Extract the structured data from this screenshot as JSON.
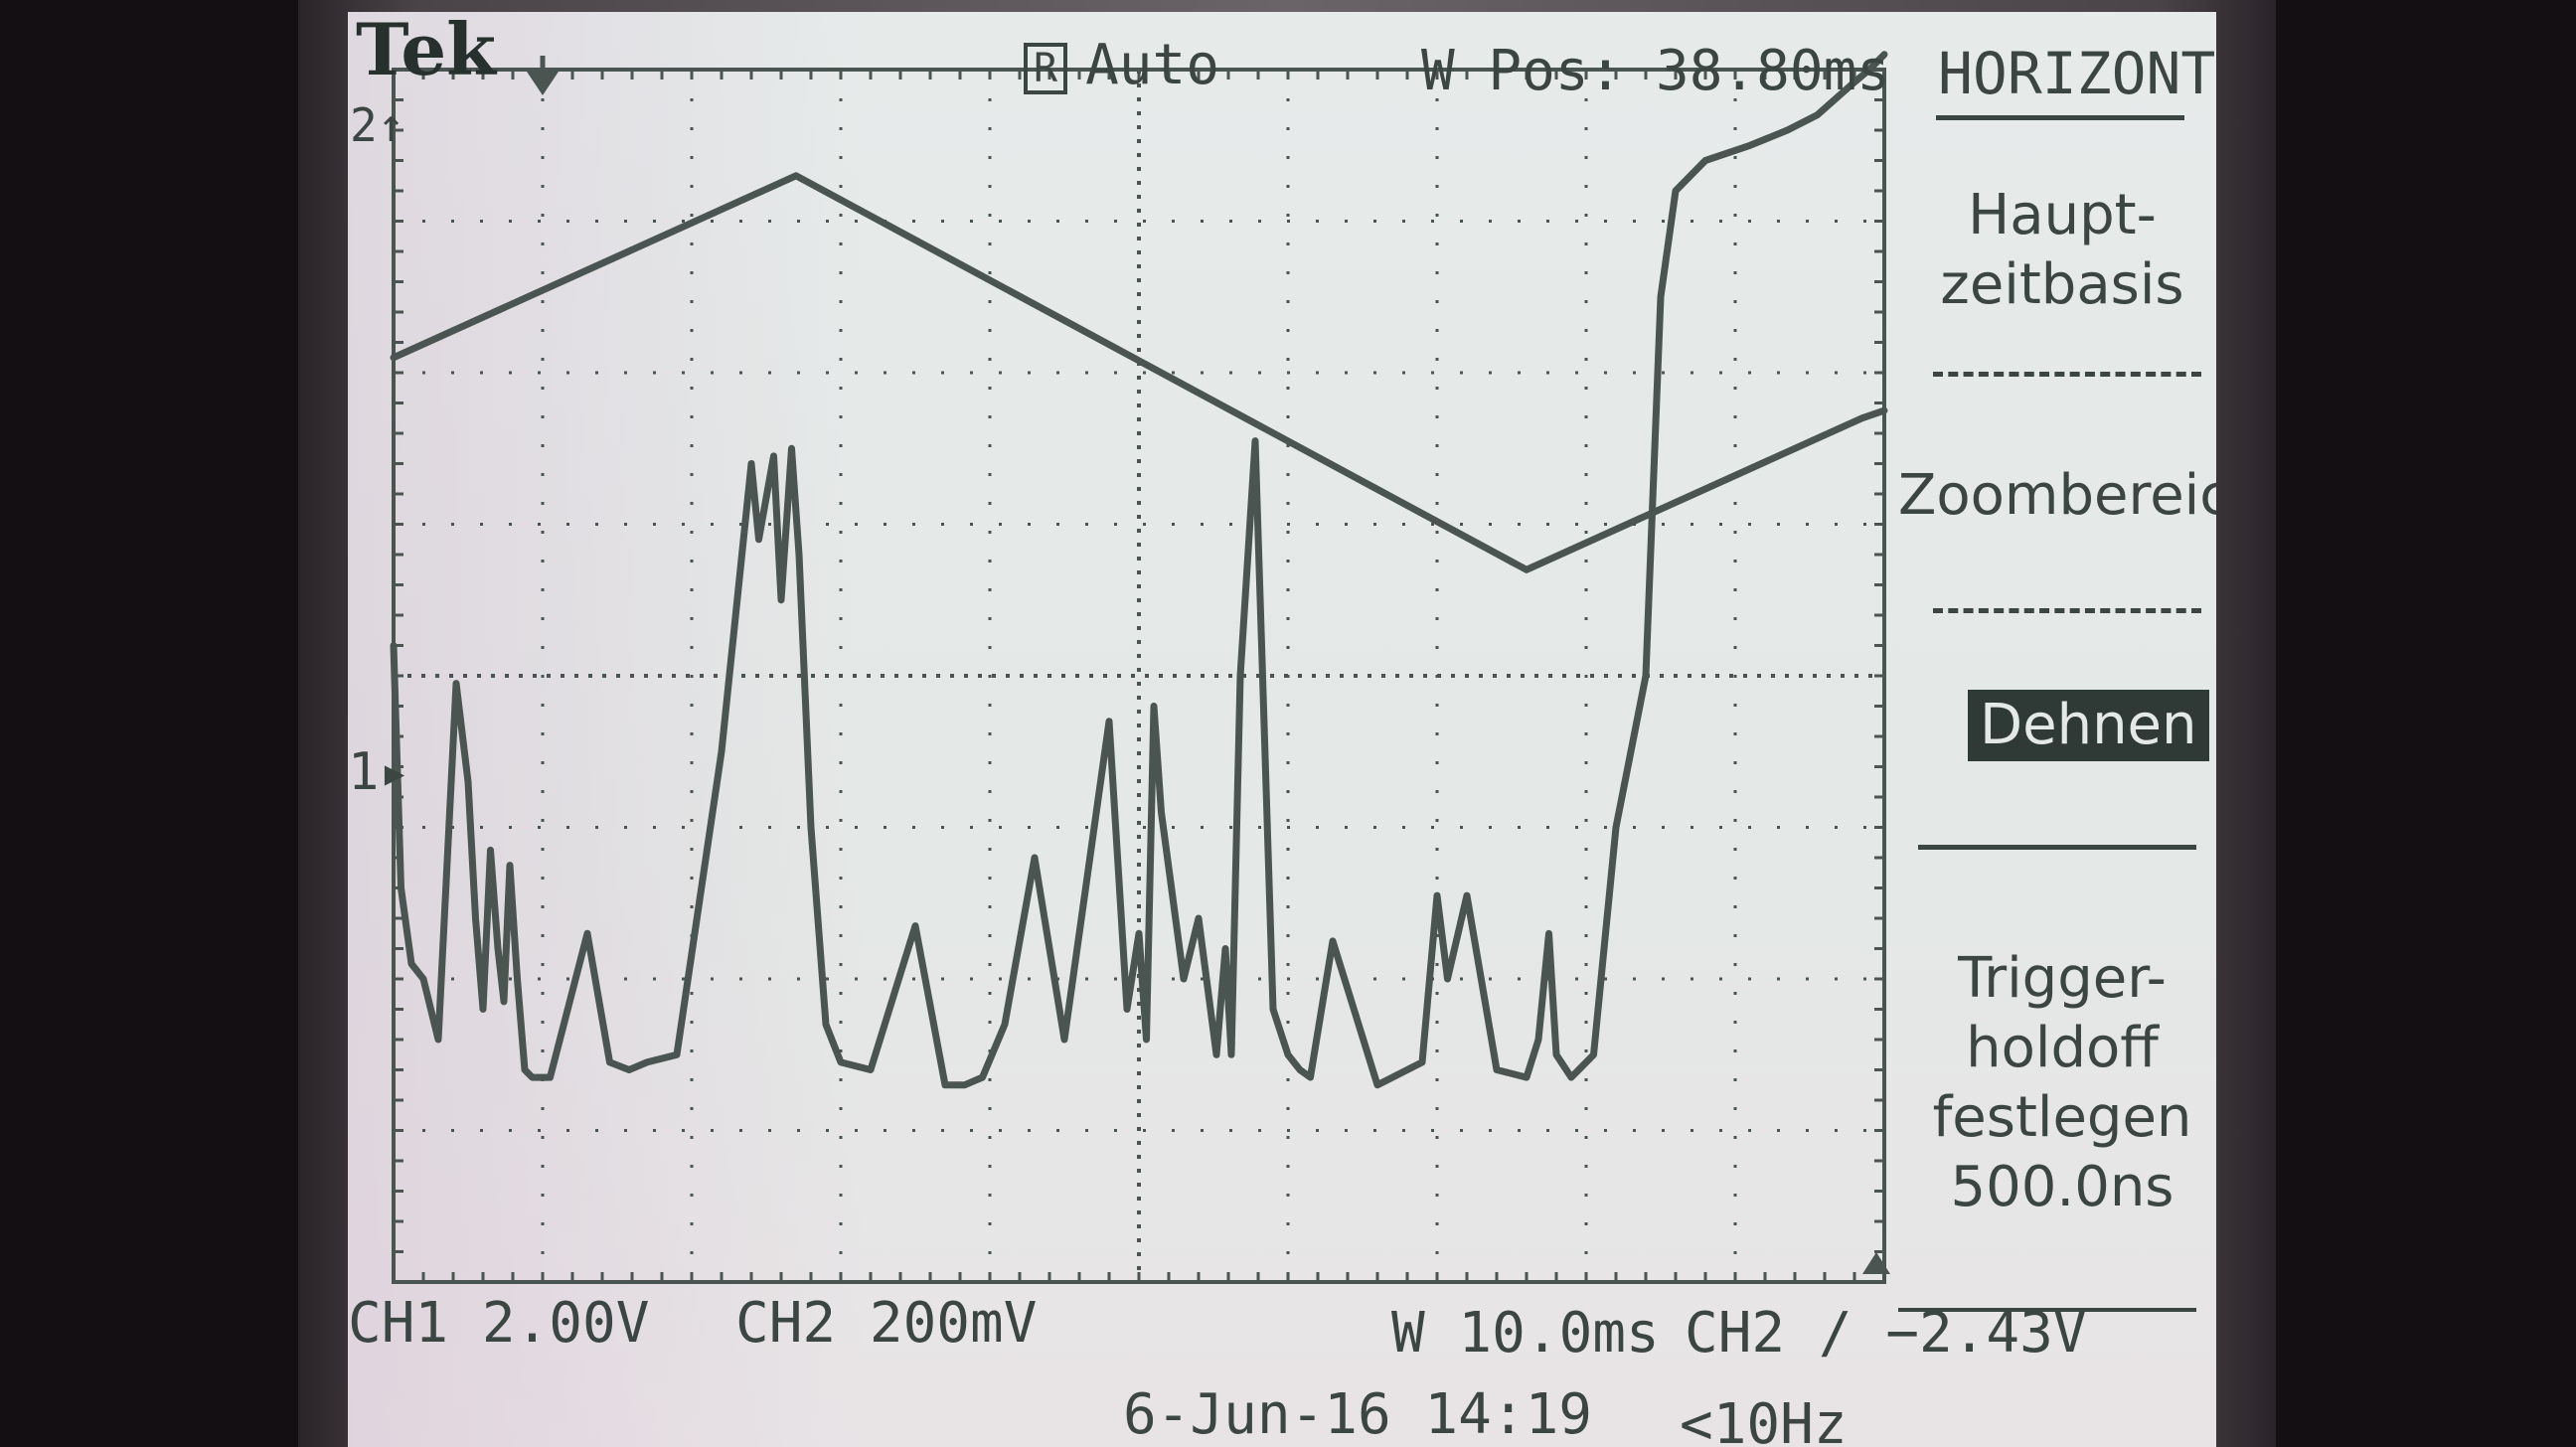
{
  "brand": "Tek",
  "acquisition": {
    "mode_badge": "R",
    "trigger_mode": "Auto"
  },
  "window_position": "W Pos: 38.80ms",
  "menu": {
    "title": "HORIZONTAL",
    "items": [
      {
        "lines": [
          "Haupt-",
          "zeitbasis"
        ]
      },
      {
        "lines": [
          "Zoombereich"
        ]
      },
      {
        "lines": [
          "Dehnen"
        ],
        "highlighted": true
      },
      {
        "lines": [
          "Trigger-",
          "holdoff",
          "festlegen",
          "500.0ns"
        ]
      }
    ]
  },
  "channels": {
    "ch1": {
      "marker": "1",
      "scale_label": "CH1  2.00V"
    },
    "ch2": {
      "marker": "2",
      "scale_label": "CH2  200mV"
    }
  },
  "timebase": "W 10.0ms",
  "trigger": "CH2 ∕ −2.43V",
  "datetime": "6-Jun-16 14:19",
  "frequency": "<10Hz",
  "colors": {
    "screen": "#e4e8e6",
    "trace": "#4a5450",
    "text": "#3b4541"
  },
  "chart_data": {
    "type": "line",
    "grid": true,
    "x_divisions": 10,
    "y_divisions": 8,
    "series": [
      {
        "name": "",
        "x": [
          0,
          2.7,
          7.6,
          9.85,
          10
        ],
        "y": [
          6.1,
          7.3,
          4.7,
          5.7,
          5.75
        ]
      },
      {
        "name": "",
        "x": [
          0,
          0.05,
          0.12,
          0.2,
          0.3,
          0.42,
          0.5,
          0.55,
          0.6,
          0.65,
          0.7,
          0.74,
          0.78,
          0.83,
          0.88,
          0.93,
          1.05,
          1.3,
          1.45,
          1.58,
          1.7,
          1.9,
          2.2,
          2.4,
          2.45,
          2.55,
          2.6,
          2.67,
          2.72,
          2.8,
          2.9,
          3.0,
          3.2,
          3.5,
          3.7,
          3.83,
          3.95,
          4.1,
          4.3,
          4.5,
          4.8,
          4.92,
          5.0,
          5.05,
          5.1,
          5.15,
          5.3,
          5.4,
          5.52,
          5.58,
          5.62,
          5.68,
          5.78,
          5.9,
          6.0,
          6.08,
          6.15,
          6.3,
          6.6,
          6.9,
          7.0,
          7.07,
          7.2,
          7.4,
          7.6,
          7.68,
          7.75,
          7.8,
          7.9,
          7.95,
          8.05,
          8.2,
          8.4,
          8.5,
          8.6,
          8.8,
          9.1,
          9.35,
          9.55,
          9.78,
          9.9,
          10
        ],
        "y": [
          4.2,
          2.6,
          2.1,
          2.0,
          1.6,
          3.95,
          3.3,
          2.4,
          1.8,
          2.85,
          2.2,
          1.85,
          2.75,
          2.0,
          1.4,
          1.35,
          1.35,
          2.3,
          1.45,
          1.4,
          1.45,
          1.5,
          3.5,
          5.4,
          4.9,
          5.45,
          4.5,
          5.5,
          4.8,
          3.0,
          1.7,
          1.45,
          1.4,
          2.35,
          1.3,
          1.3,
          1.35,
          1.7,
          2.8,
          1.6,
          3.7,
          1.8,
          2.3,
          1.6,
          3.8,
          3.1,
          2.0,
          2.4,
          1.5,
          2.2,
          1.5,
          4.0,
          5.55,
          1.8,
          1.5,
          1.4,
          1.35,
          2.25,
          1.3,
          1.45,
          2.55,
          2.0,
          2.55,
          1.4,
          1.35,
          1.6,
          2.3,
          1.5,
          1.35,
          1.4,
          1.5,
          3.0,
          4.0,
          6.5,
          7.2,
          7.4,
          7.5,
          7.6,
          7.7,
          7.9,
          8.0,
          8.1
        ]
      }
    ]
  }
}
